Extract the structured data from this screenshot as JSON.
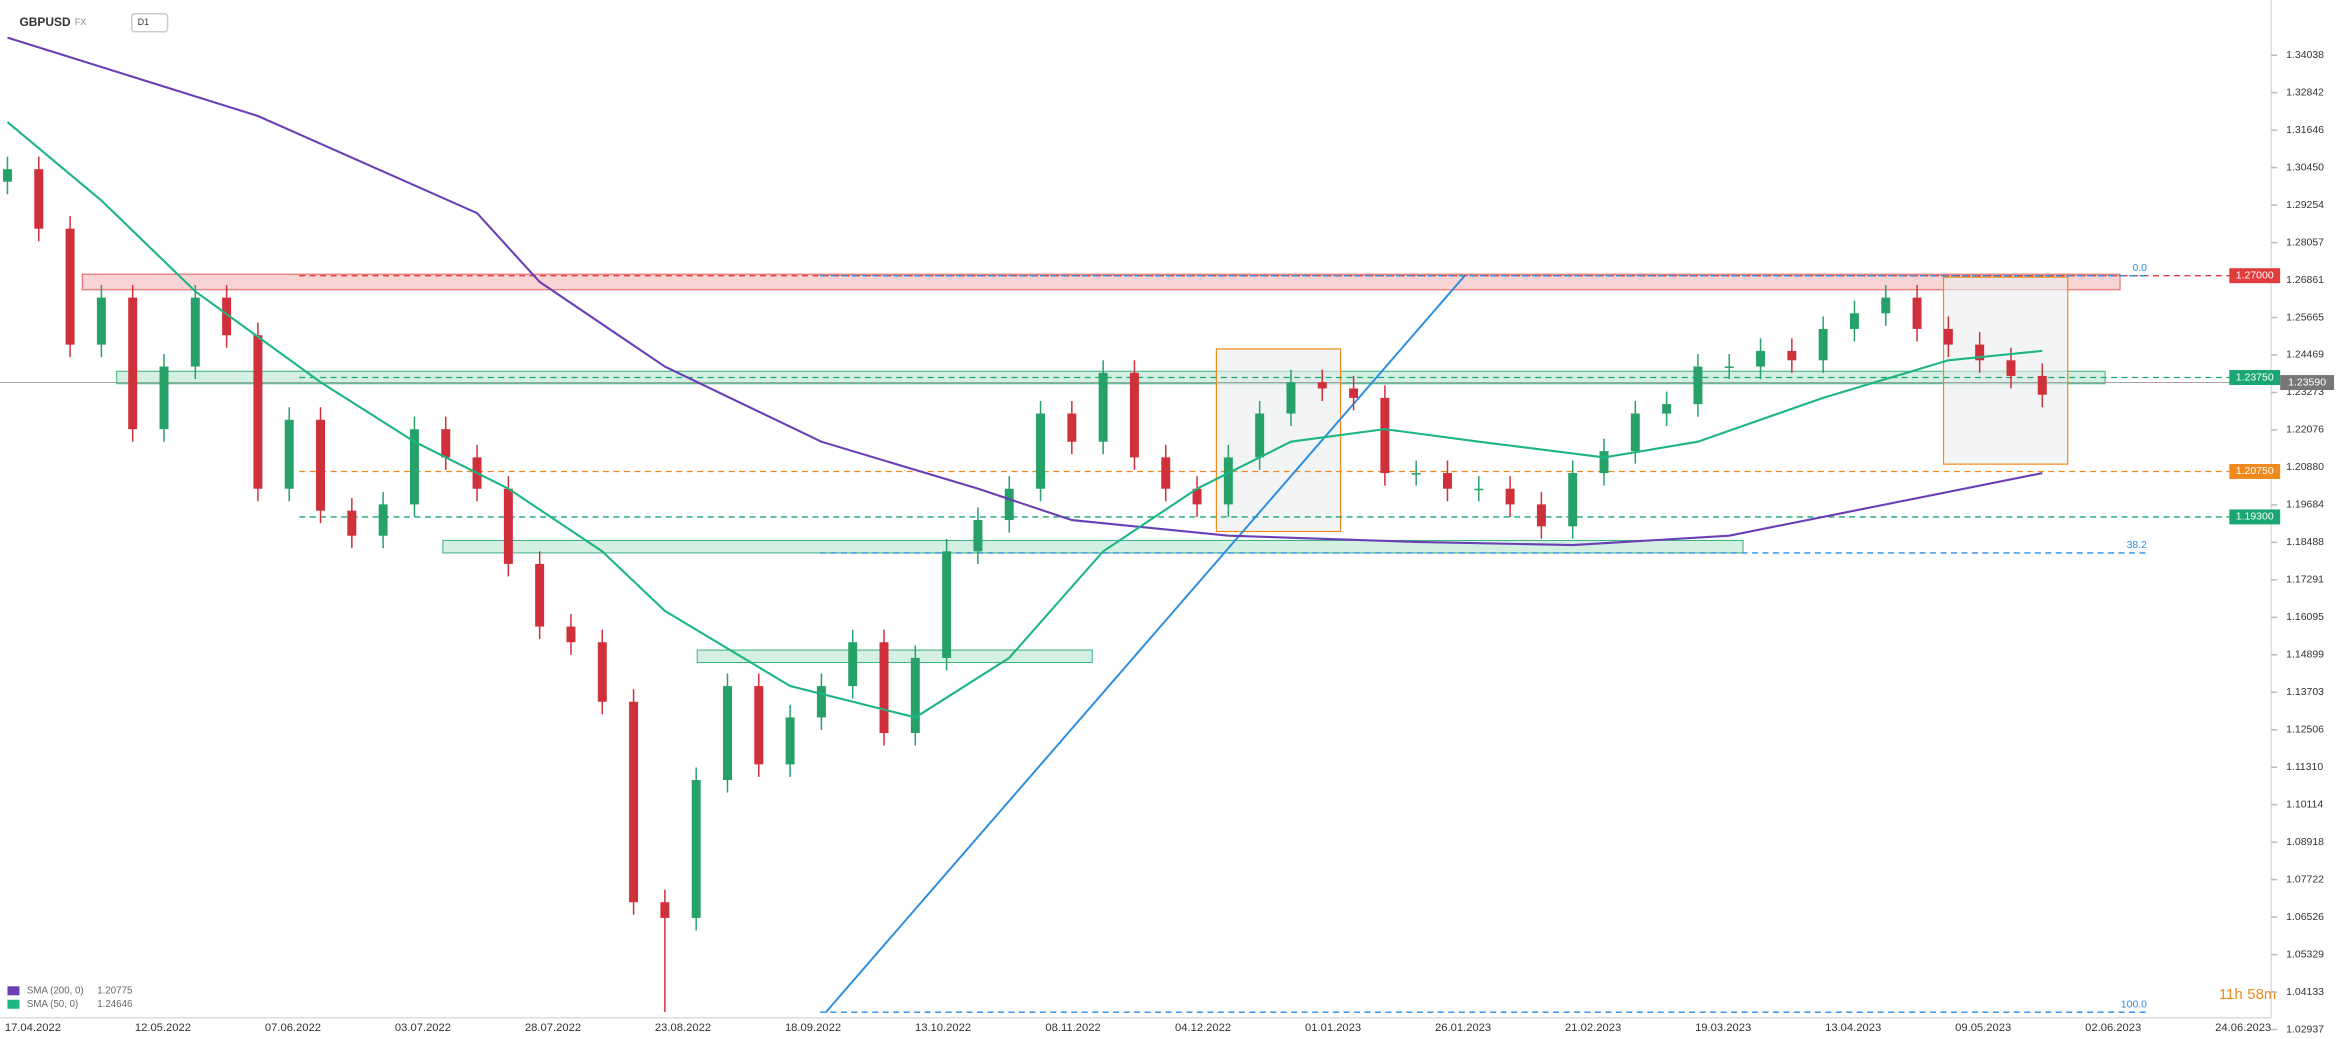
{
  "header": {
    "symbol": "GBPUSD",
    "market": "FX",
    "interval": "D1"
  },
  "timer": {
    "hours": "11h",
    "minutes": "58m"
  },
  "chart_data": {
    "type": "candlestick",
    "x_labels": [
      "17.04.2022",
      "12.05.2022",
      "07.06.2022",
      "03.07.2022",
      "28.07.2022",
      "23.08.2022",
      "18.09.2022",
      "13.10.2022",
      "08.11.2022",
      "04.12.2022",
      "01.01.2023",
      "26.01.2023",
      "21.02.2023",
      "19.03.2023",
      "13.04.2023",
      "09.05.2023",
      "02.06.2023",
      "24.06.2023"
    ],
    "ylim": [
      1.02645,
      1.3579
    ],
    "yticks": [
      1.34038,
      1.32842,
      1.31646,
      {
        "value": 1.3045,
        "label": "1.30450"
      },
      1.29254,
      1.28057,
      1.26861,
      1.25665,
      1.24469,
      1.23273,
      1.22076,
      {
        "value": 1.2088,
        "label": "1.20880"
      },
      1.19684,
      1.18488,
      1.17291,
      1.16095,
      1.14899,
      1.13703,
      1.12506,
      {
        "value": 1.1131,
        "label": "1.11310"
      },
      1.10114,
      1.08918,
      1.07722,
      1.06526,
      1.05329,
      1.04133,
      1.02937
    ],
    "up_color": "#26a269",
    "down_color": "#d0303a",
    "open": [
      1.3,
      1.304,
      1.285,
      1.248,
      1.263,
      1.221,
      1.241,
      1.263,
      1.251,
      1.202,
      1.224,
      1.195,
      1.187,
      1.197,
      1.221,
      1.212,
      1.202,
      1.178,
      1.158,
      1.153,
      1.134,
      1.07,
      1.065,
      1.109,
      1.139,
      1.114,
      1.129,
      1.139,
      1.153,
      1.124,
      1.148,
      1.182,
      1.192,
      1.202,
      1.226,
      1.217,
      1.239,
      1.212,
      1.202,
      1.197,
      1.212,
      1.226,
      1.236,
      1.234,
      1.231,
      1.207,
      1.207,
      1.202,
      1.202,
      1.197,
      1.19,
      1.207,
      1.214,
      1.226,
      1.229,
      1.241,
      1.241,
      1.246,
      1.243,
      1.253,
      1.258,
      1.263,
      1.253,
      1.248,
      1.243,
      1.238
    ],
    "high": [
      1.308,
      1.308,
      1.289,
      1.267,
      1.267,
      1.245,
      1.267,
      1.267,
      1.255,
      1.228,
      1.228,
      1.199,
      1.201,
      1.225,
      1.225,
      1.216,
      1.206,
      1.182,
      1.162,
      1.157,
      1.138,
      1.074,
      1.113,
      1.143,
      1.143,
      1.133,
      1.143,
      1.157,
      1.157,
      1.152,
      1.186,
      1.196,
      1.206,
      1.23,
      1.23,
      1.243,
      1.243,
      1.216,
      1.206,
      1.216,
      1.23,
      1.24,
      1.24,
      1.238,
      1.235,
      1.211,
      1.211,
      1.206,
      1.206,
      1.201,
      1.211,
      1.218,
      1.23,
      1.233,
      1.245,
      1.245,
      1.25,
      1.25,
      1.257,
      1.262,
      1.267,
      1.267,
      1.257,
      1.252,
      1.247,
      1.242
    ],
    "low": [
      1.296,
      1.281,
      1.244,
      1.244,
      1.217,
      1.217,
      1.237,
      1.247,
      1.198,
      1.198,
      1.191,
      1.183,
      1.183,
      1.193,
      1.208,
      1.198,
      1.174,
      1.154,
      1.149,
      1.13,
      1.066,
      1.035,
      1.061,
      1.105,
      1.11,
      1.11,
      1.125,
      1.135,
      1.12,
      1.12,
      1.144,
      1.178,
      1.188,
      1.198,
      1.213,
      1.213,
      1.208,
      1.198,
      1.193,
      1.193,
      1.208,
      1.222,
      1.23,
      1.227,
      1.203,
      1.203,
      1.198,
      1.198,
      1.193,
      1.186,
      1.186,
      1.203,
      1.21,
      1.222,
      1.225,
      1.237,
      1.237,
      1.239,
      1.239,
      1.249,
      1.254,
      1.249,
      1.244,
      1.239,
      1.234,
      1.228
    ],
    "close": [
      1.304,
      1.285,
      1.248,
      1.263,
      1.221,
      1.241,
      1.263,
      1.251,
      1.202,
      1.224,
      1.195,
      1.187,
      1.197,
      1.221,
      1.212,
      1.202,
      1.178,
      1.158,
      1.153,
      1.134,
      1.07,
      1.065,
      1.109,
      1.139,
      1.114,
      1.129,
      1.139,
      1.153,
      1.124,
      1.148,
      1.182,
      1.192,
      1.202,
      1.226,
      1.217,
      1.239,
      1.212,
      1.202,
      1.197,
      1.212,
      1.226,
      1.236,
      1.234,
      1.231,
      1.207,
      1.207,
      1.202,
      1.202,
      1.197,
      1.19,
      1.207,
      1.214,
      1.226,
      1.229,
      1.241,
      1.241,
      1.246,
      1.243,
      1.253,
      1.258,
      1.263,
      1.253,
      1.248,
      1.243,
      1.238,
      1.232
    ],
    "series": [
      {
        "name": "SMA (200, 0)",
        "last": 1.20775,
        "color": "#6a3fb5",
        "x": [
          0,
          8,
          15,
          17,
          21,
          26,
          31,
          34,
          39,
          45,
          50,
          55,
          60,
          65
        ],
        "values": [
          1.346,
          1.321,
          1.29,
          1.268,
          1.241,
          1.217,
          1.202,
          1.192,
          1.187,
          1.185,
          1.184,
          1.187,
          1.197,
          1.207
        ]
      },
      {
        "name": "SMA (50, 0)",
        "last": 1.24646,
        "color": "#1db584",
        "x": [
          0,
          3,
          6,
          10,
          13,
          16,
          19,
          21,
          25,
          29,
          32,
          35,
          38,
          41,
          44,
          47,
          51,
          54,
          58,
          62,
          65
        ],
        "values": [
          1.319,
          1.294,
          1.265,
          1.236,
          1.217,
          1.202,
          1.182,
          1.163,
          1.139,
          1.129,
          1.148,
          1.182,
          1.202,
          1.217,
          1.221,
          1.217,
          1.212,
          1.217,
          1.231,
          1.243,
          1.246
        ]
      }
    ],
    "levels": [
      {
        "value": 1.27,
        "label": "1.27000",
        "color": "#e03c3c"
      },
      {
        "value": 1.2375,
        "label": "1.23750",
        "color": "#1aa774"
      },
      {
        "value": 1.2075,
        "label": "1.20750",
        "color": "#f08a1c"
      },
      {
        "value": 1.193,
        "label": "1.19300",
        "color": "#1aa774"
      }
    ],
    "current": {
      "value": 1.2359,
      "label": "1.23590"
    },
    "zones": [
      [
        1.2655,
        1.2705
      ],
      [
        1.2355,
        1.2395
      ],
      [
        1.1815,
        1.1855
      ],
      [
        1.1465,
        1.1505
      ]
    ],
    "fib": [
      {
        "value": 1.27,
        "label": "0.0"
      },
      {
        "value": 1.1815,
        "label": "38.2"
      },
      {
        "value": 1.0349,
        "label": "100.0"
      }
    ]
  }
}
